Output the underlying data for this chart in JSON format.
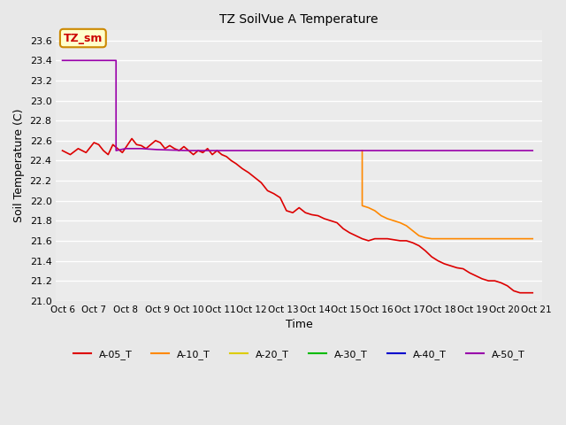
{
  "title": "TZ SoilVue A Temperature",
  "xlabel": "Time",
  "ylabel": "Soil Temperature (C)",
  "ylim": [
    21.0,
    23.7
  ],
  "background_color": "#e8e8e8",
  "plot_bg_color": "#ebebeb",
  "annotation_text": "TZ_sm",
  "annotation_bg": "#ffffcc",
  "annotation_border": "#cc8800",
  "annotation_text_color": "#cc0000",
  "x_tick_labels": [
    "Oct 6",
    "Oct 7",
    "Oct 8",
    "Oct 9",
    "Oct 10",
    "Oct 11",
    "Oct 12",
    "Oct 13",
    "Oct 14",
    "Oct 15",
    "Oct 16",
    "Oct 17",
    "Oct 18",
    "Oct 19",
    "Oct 20",
    "Oct 21"
  ],
  "series": {
    "A-05_T": {
      "color": "#dd0000",
      "linewidth": 1.2,
      "x": [
        0,
        0.25,
        0.5,
        0.75,
        1.0,
        1.15,
        1.3,
        1.45,
        1.6,
        1.75,
        1.9,
        2.05,
        2.2,
        2.35,
        2.5,
        2.65,
        2.8,
        2.95,
        3.1,
        3.25,
        3.4,
        3.55,
        3.7,
        3.85,
        4.0,
        4.15,
        4.3,
        4.45,
        4.6,
        4.75,
        4.9,
        5.05,
        5.2,
        5.35,
        5.5,
        5.7,
        5.9,
        6.1,
        6.3,
        6.5,
        6.7,
        6.9,
        7.1,
        7.3,
        7.5,
        7.7,
        7.9,
        8.1,
        8.3,
        8.5,
        8.7,
        8.9,
        9.1,
        9.3,
        9.5,
        9.7,
        9.9,
        10.1,
        10.3,
        10.5,
        10.7,
        10.9,
        11.1,
        11.3,
        11.5,
        11.7,
        11.9,
        12.1,
        12.3,
        12.5,
        12.7,
        12.9,
        13.1,
        13.3,
        13.5,
        13.7,
        13.9,
        14.1,
        14.3,
        14.5,
        14.7,
        14.9
      ],
      "y": [
        22.5,
        22.46,
        22.52,
        22.48,
        22.58,
        22.56,
        22.5,
        22.46,
        22.56,
        22.52,
        22.48,
        22.55,
        22.62,
        22.56,
        22.55,
        22.52,
        22.56,
        22.6,
        22.58,
        22.52,
        22.55,
        22.52,
        22.5,
        22.54,
        22.5,
        22.46,
        22.5,
        22.48,
        22.52,
        22.46,
        22.5,
        22.46,
        22.44,
        22.4,
        22.37,
        22.32,
        22.28,
        22.23,
        22.18,
        22.1,
        22.07,
        22.03,
        21.9,
        21.88,
        21.93,
        21.88,
        21.86,
        21.85,
        21.82,
        21.8,
        21.78,
        21.72,
        21.68,
        21.65,
        21.62,
        21.6,
        21.62,
        21.62,
        21.62,
        21.61,
        21.6,
        21.6,
        21.58,
        21.55,
        21.5,
        21.44,
        21.4,
        21.37,
        21.35,
        21.33,
        21.32,
        21.28,
        21.25,
        21.22,
        21.2,
        21.2,
        21.18,
        21.15,
        21.1,
        21.08,
        21.08,
        21.08
      ]
    },
    "A-10_T": {
      "color": "#ff8800",
      "linewidth": 1.2,
      "x": [
        9.5,
        9.5,
        9.7,
        9.9,
        10.1,
        10.3,
        10.5,
        10.7,
        10.9,
        11.1,
        11.3,
        11.5,
        11.7,
        11.9,
        12.1,
        12.3,
        12.5,
        12.7,
        12.9,
        13.1,
        13.3,
        13.5,
        13.7,
        13.9,
        14.1,
        14.3,
        14.5,
        14.7,
        14.9
      ],
      "y": [
        22.5,
        21.95,
        21.93,
        21.9,
        21.85,
        21.82,
        21.8,
        21.78,
        21.75,
        21.7,
        21.65,
        21.63,
        21.62,
        21.62,
        21.62,
        21.62,
        21.62,
        21.62,
        21.62,
        21.62,
        21.62,
        21.62,
        21.62,
        21.62,
        21.62,
        21.62,
        21.62,
        21.62,
        21.62
      ]
    },
    "A-20_T": {
      "color": "#ddcc00",
      "linewidth": 1.2,
      "x": [
        9.5,
        9.5
      ],
      "y": [
        22.5,
        22.5
      ]
    },
    "A-30_T": {
      "color": "#00bb00",
      "linewidth": 1.2,
      "x": [],
      "y": []
    },
    "A-40_T": {
      "color": "#0000cc",
      "linewidth": 1.2,
      "x": [],
      "y": []
    },
    "A-50_T": {
      "color": "#9900aa",
      "linewidth": 1.2,
      "x": [
        0,
        1.7,
        1.7,
        2.0,
        2.5,
        3.0,
        4.0,
        5.0,
        6.0,
        7.0,
        8.0,
        9.0,
        9.5,
        9.7,
        9.9,
        10.5,
        11.0,
        12.0,
        13.0,
        14.0,
        14.9
      ],
      "y": [
        23.4,
        23.4,
        22.5,
        22.52,
        22.52,
        22.51,
        22.5,
        22.5,
        22.5,
        22.5,
        22.5,
        22.5,
        22.5,
        22.5,
        22.5,
        22.5,
        22.5,
        22.5,
        22.5,
        22.5,
        22.5
      ]
    }
  },
  "legend_order": [
    "A-05_T",
    "A-10_T",
    "A-20_T",
    "A-30_T",
    "A-40_T",
    "A-50_T"
  ]
}
